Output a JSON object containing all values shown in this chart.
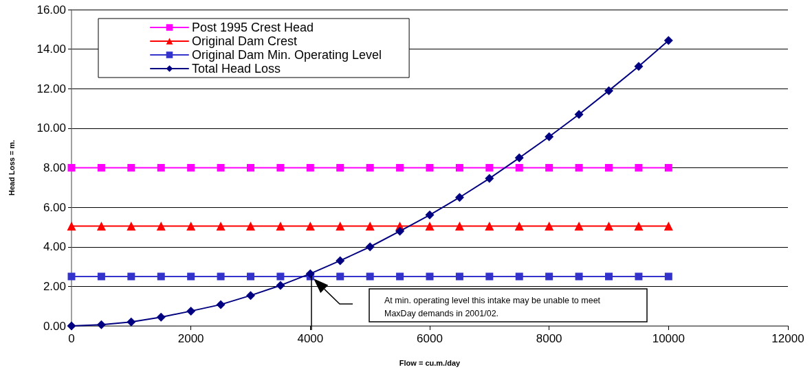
{
  "chart_data": {
    "type": "line",
    "xlabel": "Flow = cu.m./day",
    "ylabel": "Head Loss = m.",
    "x": [
      0,
      500,
      1000,
      1500,
      2000,
      2500,
      3000,
      3500,
      4000,
      4500,
      5000,
      5500,
      6000,
      6500,
      7000,
      7500,
      8000,
      8500,
      9000,
      9500,
      10000
    ],
    "series": [
      {
        "name": "Post 1995 Crest Head",
        "color": "#ff00ff",
        "marker": "square",
        "values": [
          8.0,
          8.0,
          8.0,
          8.0,
          8.0,
          8.0,
          8.0,
          8.0,
          8.0,
          8.0,
          8.0,
          8.0,
          8.0,
          8.0,
          8.0,
          8.0,
          8.0,
          8.0,
          8.0,
          8.0,
          8.0
        ]
      },
      {
        "name": "Original Dam Crest",
        "color": "#ff0000",
        "marker": "triangle",
        "values": [
          5.05,
          5.05,
          5.05,
          5.05,
          5.05,
          5.05,
          5.05,
          5.05,
          5.05,
          5.05,
          5.05,
          5.05,
          5.05,
          5.05,
          5.05,
          5.05,
          5.05,
          5.05,
          5.05,
          5.05,
          5.05
        ]
      },
      {
        "name": "Original Dam Min. Operating Level",
        "color": "#3333cc",
        "marker": "square",
        "values": [
          2.5,
          2.5,
          2.5,
          2.5,
          2.5,
          2.5,
          2.5,
          2.5,
          2.5,
          2.5,
          2.5,
          2.5,
          2.5,
          2.5,
          2.5,
          2.5,
          2.5,
          2.5,
          2.5,
          2.5,
          2.5
        ]
      },
      {
        "name": "Total Head Loss",
        "color": "#000080",
        "marker": "diamond",
        "values": [
          0,
          0.06,
          0.2,
          0.44,
          0.75,
          1.08,
          1.54,
          2.05,
          2.64,
          3.3,
          4.0,
          4.79,
          5.61,
          6.5,
          7.46,
          8.5,
          9.57,
          10.7,
          11.9,
          13.13,
          14.44
        ]
      }
    ],
    "xlim": [
      0,
      12000
    ],
    "xticks": [
      0,
      2000,
      4000,
      6000,
      8000,
      10000,
      12000
    ],
    "ylim": [
      0,
      16
    ],
    "yticks": [
      {
        "value": 0,
        "label": "0.00"
      },
      {
        "value": 2,
        "label": "2.00"
      },
      {
        "value": 4,
        "label": "4.00"
      },
      {
        "value": 6,
        "label": "6.00"
      },
      {
        "value": 8,
        "label": "8.00"
      },
      {
        "value": 10,
        "label": "10.00"
      },
      {
        "value": 12,
        "label": "12.00"
      },
      {
        "value": 14,
        "label": "14.00"
      },
      {
        "value": 16,
        "label": "16.00"
      }
    ],
    "grid": "y",
    "legend": "top left",
    "line_style": "solid",
    "annotations": [
      "At min. operating level this intake may be unable to meet MaxDay demands in 2001/02."
    ]
  }
}
